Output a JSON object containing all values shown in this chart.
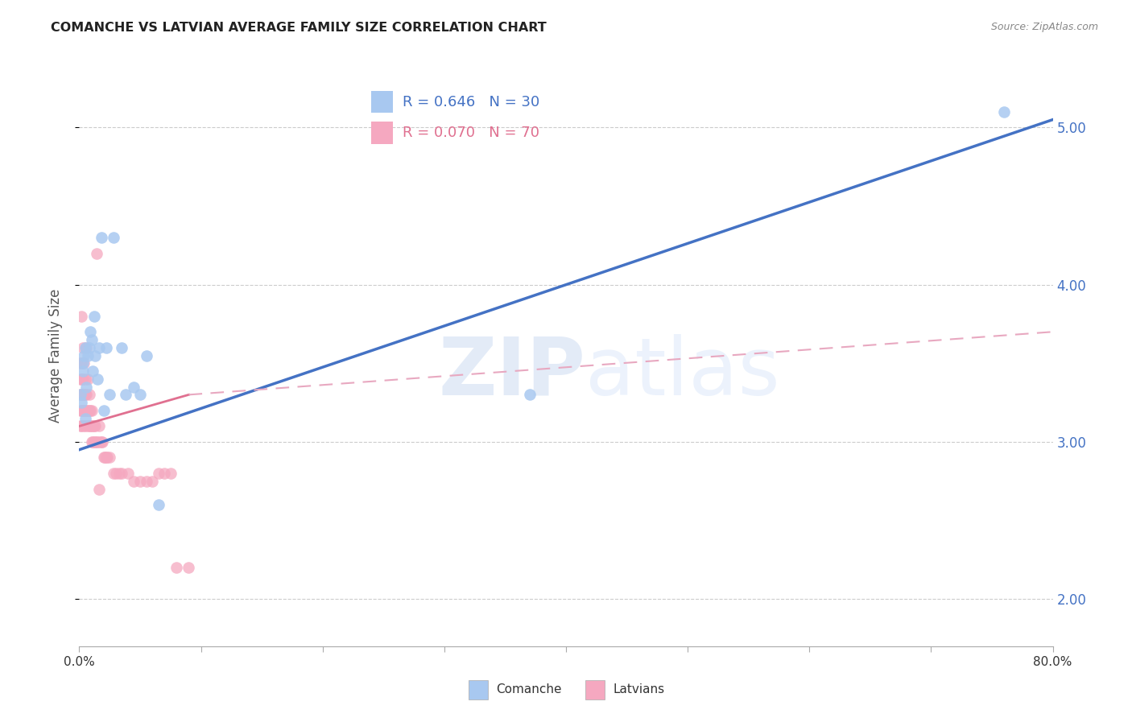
{
  "title": "COMANCHE VS LATVIAN AVERAGE FAMILY SIZE CORRELATION CHART",
  "source": "Source: ZipAtlas.com",
  "ylabel": "Average Family Size",
  "yticks": [
    2.0,
    3.0,
    4.0,
    5.0
  ],
  "legend_entries": [
    {
      "label": "R = 0.646   N = 30",
      "color": "#A8C8F0"
    },
    {
      "label": "R = 0.070   N = 70",
      "color": "#F5A8C0"
    }
  ],
  "bottom_legend": [
    "Comanche",
    "Latvians"
  ],
  "comanche_color": "#A8C8F0",
  "latvian_color": "#F5A8C0",
  "comanche_line_color": "#4472C4",
  "latvian_line_color": "#E07090",
  "latvian_dashed_color": "#E8A8C0",
  "comanche_x": [
    0.001,
    0.002,
    0.003,
    0.003,
    0.004,
    0.005,
    0.005,
    0.006,
    0.007,
    0.008,
    0.009,
    0.01,
    0.011,
    0.012,
    0.013,
    0.015,
    0.016,
    0.018,
    0.02,
    0.022,
    0.025,
    0.028,
    0.035,
    0.038,
    0.045,
    0.05,
    0.055,
    0.065,
    0.37,
    0.76
  ],
  "comanche_y": [
    3.3,
    3.25,
    3.5,
    3.45,
    3.55,
    3.15,
    3.6,
    3.35,
    3.55,
    3.6,
    3.7,
    3.65,
    3.45,
    3.8,
    3.55,
    3.4,
    3.6,
    4.3,
    3.2,
    3.6,
    3.3,
    4.3,
    3.6,
    3.3,
    3.35,
    3.3,
    3.55,
    2.6,
    3.3,
    5.1
  ],
  "latvian_x": [
    0.001,
    0.001,
    0.001,
    0.001,
    0.001,
    0.002,
    0.002,
    0.002,
    0.002,
    0.002,
    0.002,
    0.003,
    0.003,
    0.003,
    0.003,
    0.004,
    0.004,
    0.004,
    0.004,
    0.005,
    0.005,
    0.005,
    0.005,
    0.006,
    0.006,
    0.006,
    0.007,
    0.007,
    0.007,
    0.008,
    0.008,
    0.008,
    0.009,
    0.009,
    0.01,
    0.01,
    0.01,
    0.011,
    0.011,
    0.012,
    0.012,
    0.013,
    0.013,
    0.014,
    0.015,
    0.016,
    0.017,
    0.018,
    0.019,
    0.02,
    0.021,
    0.022,
    0.023,
    0.025,
    0.028,
    0.03,
    0.033,
    0.035,
    0.04,
    0.045,
    0.05,
    0.055,
    0.06,
    0.065,
    0.07,
    0.075,
    0.08,
    0.09,
    0.014,
    0.016
  ],
  "latvian_y": [
    3.5,
    3.4,
    3.3,
    3.2,
    3.1,
    3.8,
    3.5,
    3.4,
    3.3,
    3.2,
    3.1,
    3.6,
    3.4,
    3.3,
    3.2,
    3.5,
    3.3,
    3.2,
    3.1,
    3.4,
    3.3,
    3.2,
    3.1,
    3.6,
    3.3,
    3.2,
    3.4,
    3.2,
    3.1,
    3.3,
    3.2,
    3.1,
    3.2,
    3.1,
    3.2,
    3.1,
    3.0,
    3.1,
    3.0,
    3.1,
    3.0,
    3.1,
    3.0,
    3.0,
    3.0,
    3.1,
    3.0,
    3.0,
    3.0,
    2.9,
    2.9,
    2.9,
    2.9,
    2.9,
    2.8,
    2.8,
    2.8,
    2.8,
    2.8,
    2.75,
    2.75,
    2.75,
    2.75,
    2.8,
    2.8,
    2.8,
    2.2,
    2.2,
    4.2,
    2.7
  ],
  "xlim": [
    0.0,
    0.8
  ],
  "ylim": [
    1.7,
    5.4
  ],
  "comanche_line": {
    "x0": 0.0,
    "x1": 0.8,
    "y0": 2.95,
    "y1": 5.05
  },
  "latvian_solid_line": {
    "x0": 0.0,
    "x1": 0.09,
    "y0": 3.1,
    "y1": 3.3
  },
  "latvian_dashed_line": {
    "x0": 0.09,
    "x1": 0.8,
    "y0": 3.3,
    "y1": 3.7
  },
  "watermark_zip": "ZIP",
  "watermark_atlas": "atlas",
  "background_color": "#FFFFFF"
}
